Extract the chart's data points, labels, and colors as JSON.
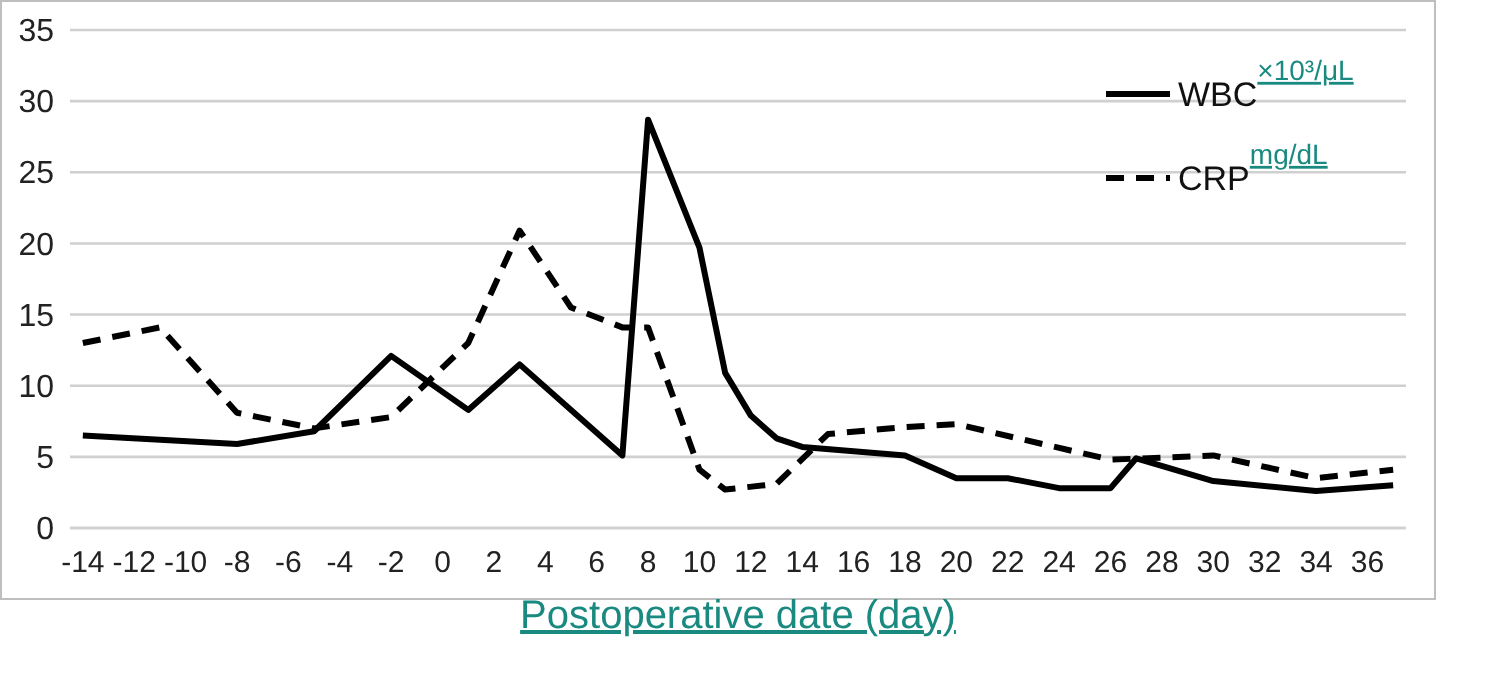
{
  "chart_data": {
    "type": "line",
    "xlabel": "Postoperative date (day)",
    "xlim": [
      -14.5,
      37.5
    ],
    "xticks": [
      -14,
      -12,
      -10,
      -8,
      -6,
      -4,
      -2,
      0,
      2,
      4,
      6,
      8,
      10,
      12,
      14,
      16,
      18,
      20,
      22,
      24,
      26,
      28,
      30,
      32,
      34,
      36
    ],
    "ylim": [
      0,
      35
    ],
    "yticks": [
      0,
      5,
      10,
      15,
      20,
      25,
      30,
      35
    ],
    "grid": "y",
    "legend": "top right",
    "series": [
      {
        "name": "WBC$^{×10³/μL}$",
        "color": "#000000",
        "line_style": "solid",
        "x": [
          -14,
          -8,
          -5,
          -2,
          1,
          3,
          7,
          8,
          10,
          11,
          12,
          13,
          14,
          16,
          18,
          20,
          22,
          24,
          26,
          27,
          30,
          34,
          37
        ],
        "values": [
          6.5,
          5.9,
          6.8,
          12.1,
          8.3,
          11.5,
          5.1,
          28.7,
          19.7,
          10.9,
          7.9,
          6.3,
          5.7,
          5.4,
          5.1,
          3.5,
          3.5,
          2.8,
          2.8,
          4.9,
          3.3,
          2.6,
          3.0
        ]
      },
      {
        "name": "CRP$^{mg/dL}$",
        "color": "#000000",
        "line_style": "dashed",
        "x": [
          -14,
          -11,
          -8,
          -5,
          -2,
          1,
          3,
          5,
          7,
          8,
          10,
          11,
          13,
          15,
          18,
          20,
          26,
          30,
          34,
          37
        ],
        "values": [
          13.0,
          14.1,
          8.1,
          7.0,
          7.8,
          13.0,
          20.9,
          15.5,
          14.1,
          14.1,
          4.1,
          2.7,
          3.1,
          6.6,
          7.1,
          7.3,
          4.8,
          5.1,
          3.5,
          4.1
        ]
      }
    ]
  }
}
